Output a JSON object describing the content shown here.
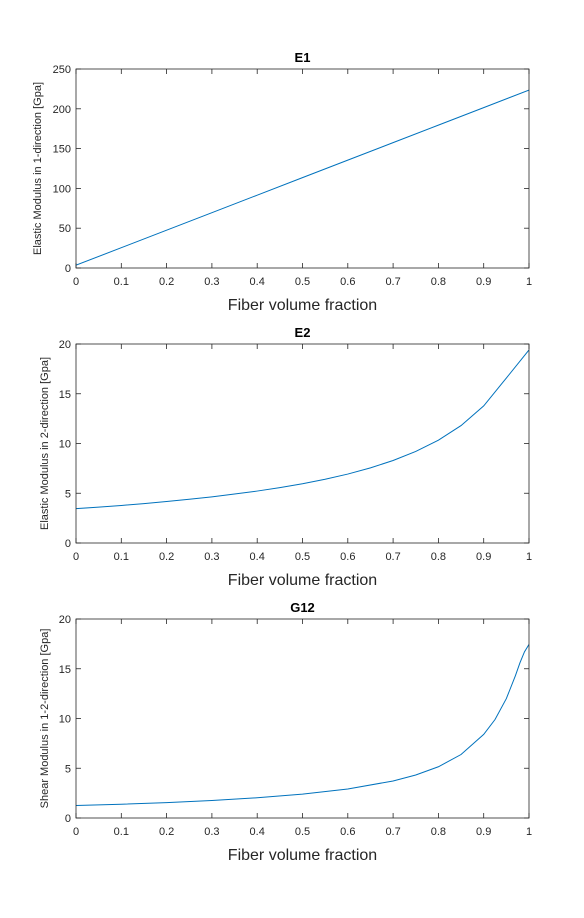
{
  "figure": {
    "background": "#ffffff",
    "axis_color": "#262626",
    "line_color": "#0072bd"
  },
  "chart_data": [
    {
      "type": "line",
      "title": "E1",
      "xlabel": "Fiber volume fraction",
      "ylabel": "Elastic Modulus in 1-direction [Gpa]",
      "xlim": [
        0,
        1
      ],
      "ylim": [
        0,
        250
      ],
      "xticks": [
        0,
        0.1,
        0.2,
        0.3,
        0.4,
        0.5,
        0.6,
        0.7,
        0.8,
        0.9,
        1
      ],
      "xtick_labels": [
        "0",
        "0.1",
        "0.2",
        "0.3",
        "0.4",
        "0.5",
        "0.6",
        "0.7",
        "0.8",
        "0.9",
        "1"
      ],
      "yticks": [
        0,
        50,
        100,
        150,
        200,
        250
      ],
      "ytick_labels": [
        "0",
        "50",
        "100",
        "150",
        "200",
        "250"
      ],
      "grid": false,
      "series": [
        {
          "x": [
            0,
            0.1,
            0.2,
            0.3,
            0.4,
            0.5,
            0.6,
            0.7,
            0.8,
            0.9,
            1
          ],
          "y": [
            3.5,
            25.5,
            47.5,
            69.5,
            91.5,
            113.5,
            135.5,
            157.5,
            179.5,
            201.5,
            223.5
          ]
        }
      ]
    },
    {
      "type": "line",
      "title": "E2",
      "xlabel": "Fiber volume fraction",
      "ylabel": "Elastic Modulus in 2-direction [Gpa]",
      "xlim": [
        0,
        1
      ],
      "ylim": [
        0,
        20
      ],
      "xticks": [
        0,
        0.1,
        0.2,
        0.3,
        0.4,
        0.5,
        0.6,
        0.7,
        0.8,
        0.9,
        1
      ],
      "xtick_labels": [
        "0",
        "0.1",
        "0.2",
        "0.3",
        "0.4",
        "0.5",
        "0.6",
        "0.7",
        "0.8",
        "0.9",
        "1"
      ],
      "yticks": [
        0,
        5,
        10,
        15,
        20
      ],
      "ytick_labels": [
        "0",
        "5",
        "10",
        "15",
        "20"
      ],
      "grid": false,
      "series": [
        {
          "x": [
            0,
            0.05,
            0.1,
            0.15,
            0.2,
            0.25,
            0.3,
            0.35,
            0.4,
            0.45,
            0.5,
            0.55,
            0.6,
            0.65,
            0.7,
            0.75,
            0.8,
            0.85,
            0.9,
            0.95,
            1
          ],
          "y": [
            3.45,
            3.6,
            3.77,
            3.96,
            4.17,
            4.4,
            4.64,
            4.92,
            5.22,
            5.57,
            5.96,
            6.41,
            6.93,
            7.55,
            8.29,
            9.2,
            10.33,
            11.8,
            13.78,
            16.58,
            19.4
          ]
        }
      ]
    },
    {
      "type": "line",
      "title": "G12",
      "xlabel": "Fiber volume fraction",
      "ylabel": "Shear Modulus in 1-2-direction [Gpa]",
      "xlim": [
        0,
        1
      ],
      "ylim": [
        0,
        20
      ],
      "xticks": [
        0,
        0.1,
        0.2,
        0.3,
        0.4,
        0.5,
        0.6,
        0.7,
        0.8,
        0.9,
        1
      ],
      "xtick_labels": [
        "0",
        "0.1",
        "0.2",
        "0.3",
        "0.4",
        "0.5",
        "0.6",
        "0.7",
        "0.8",
        "0.9",
        "1"
      ],
      "yticks": [
        0,
        5,
        10,
        15,
        20
      ],
      "ytick_labels": [
        "0",
        "5",
        "10",
        "15",
        "20"
      ],
      "grid": false,
      "series": [
        {
          "x": [
            0,
            0.1,
            0.2,
            0.3,
            0.4,
            0.5,
            0.6,
            0.7,
            0.75,
            0.8,
            0.85,
            0.9,
            0.925,
            0.95,
            0.97,
            0.98,
            0.99,
            1
          ],
          "y": [
            1.25,
            1.38,
            1.55,
            1.76,
            2.03,
            2.4,
            2.92,
            3.72,
            4.32,
            5.15,
            6.38,
            8.4,
            9.9,
            12.0,
            14.3,
            15.6,
            16.7,
            17.45
          ]
        }
      ]
    }
  ]
}
